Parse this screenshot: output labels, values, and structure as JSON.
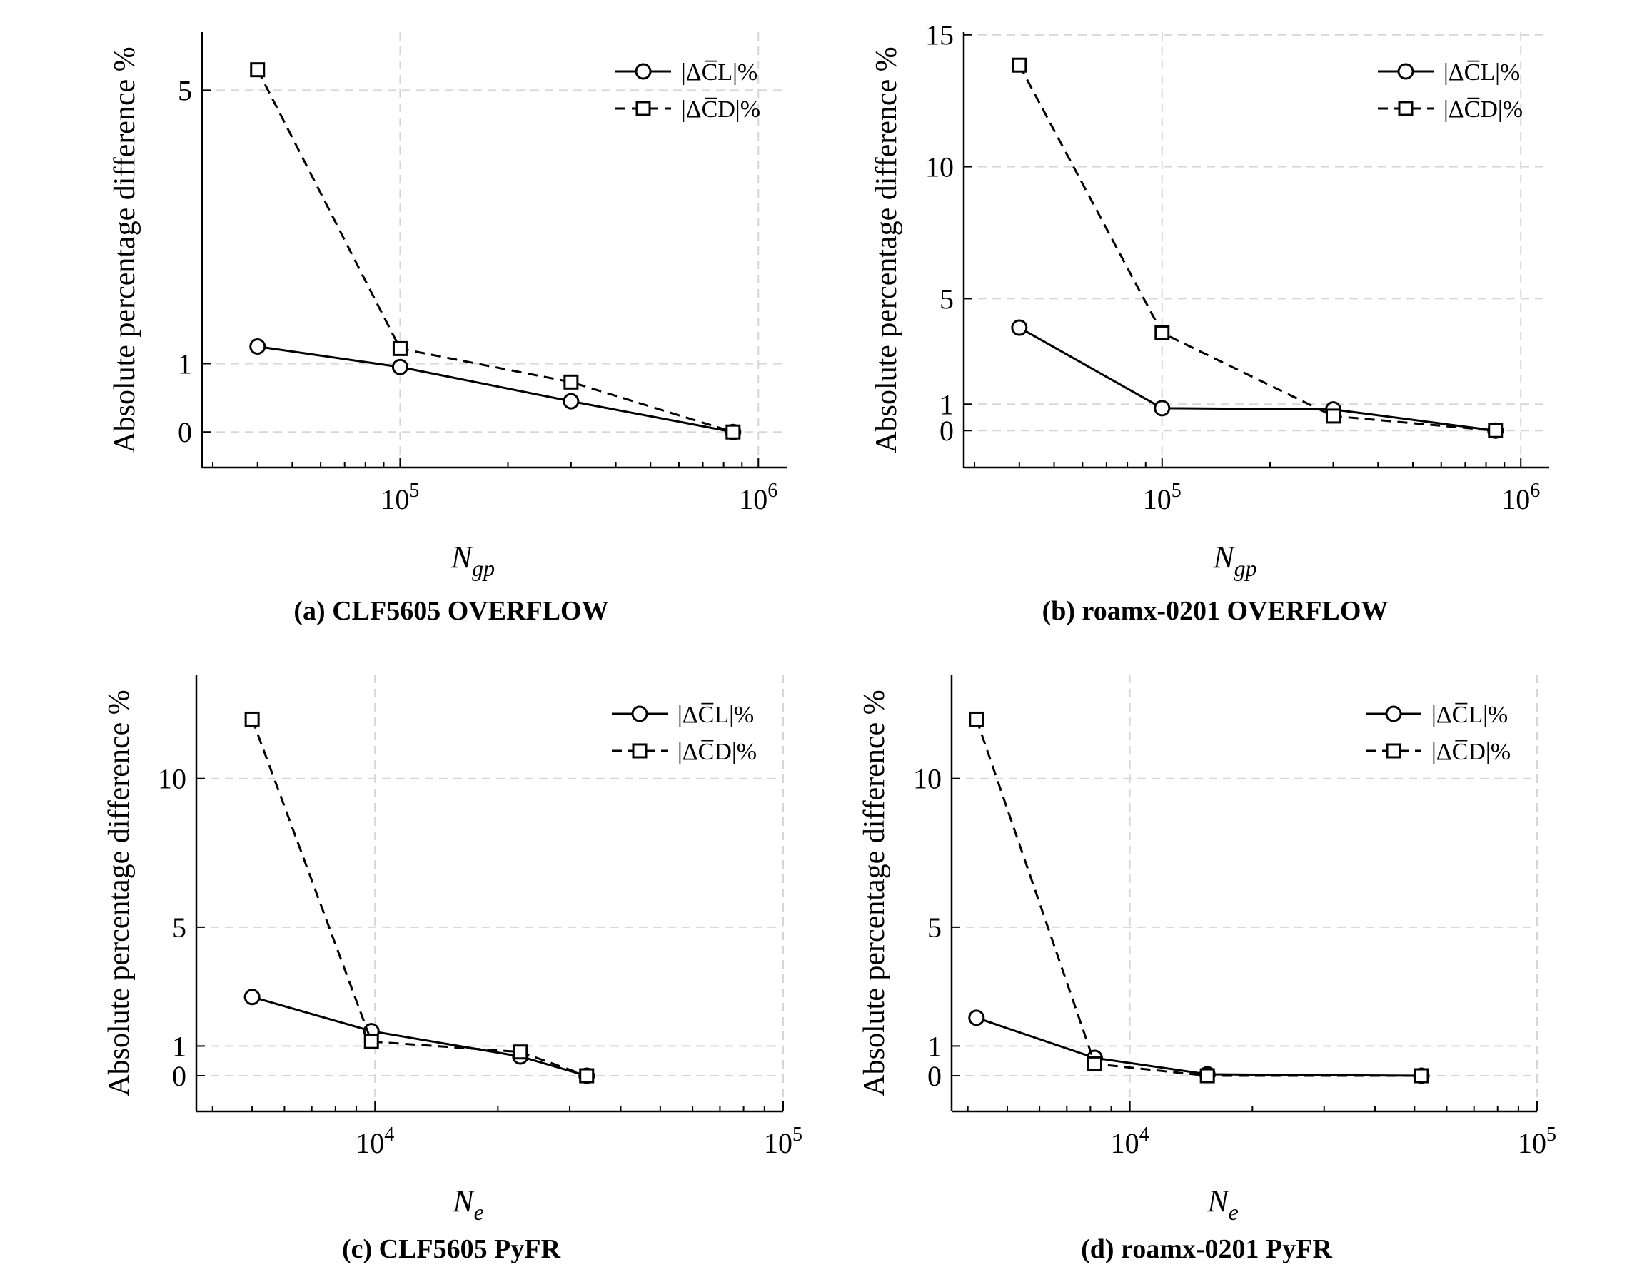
{
  "chart_data": [
    {
      "type": "line",
      "caption": "(a) CLF5605 OVERFLOW",
      "xlabel": "N",
      "xlabel_sub": "gp",
      "ylabel": "Absolute percentage difference %",
      "xscale": "log",
      "xlim": [
        28000,
        1200000
      ],
      "ylim": [
        -0.52,
        5.85
      ],
      "yticks": [
        0,
        1,
        5
      ],
      "xticks": [
        {
          "value": 100000,
          "base": "10",
          "exp": "5"
        },
        {
          "value": 1000000,
          "base": "10",
          "exp": "6"
        }
      ],
      "grid": true,
      "legend": "top-right",
      "series": [
        {
          "name": "CL",
          "label": "|ΔC̅L|%",
          "style": "solid",
          "marker": "circle",
          "x": [
            40000,
            100000,
            300000,
            850000
          ],
          "y": [
            1.25,
            0.95,
            0.45,
            0.0
          ]
        },
        {
          "name": "CD",
          "label": "|ΔC̅D|%",
          "style": "dashed",
          "marker": "square",
          "x": [
            40000,
            100000,
            300000,
            850000
          ],
          "y": [
            5.3,
            1.22,
            0.73,
            0.0
          ]
        }
      ]
    },
    {
      "type": "line",
      "caption": "(b) roamx-0201 OVERFLOW",
      "xlabel": "N",
      "xlabel_sub": "gp",
      "ylabel": "Absolute percentage difference %",
      "xscale": "log",
      "xlim": [
        28000,
        1200000
      ],
      "ylim": [
        -1.4,
        15.1
      ],
      "yticks": [
        0,
        1,
        5,
        10,
        15
      ],
      "xticks": [
        {
          "value": 100000,
          "base": "10",
          "exp": "5"
        },
        {
          "value": 1000000,
          "base": "10",
          "exp": "6"
        }
      ],
      "grid": true,
      "legend": "top-right",
      "series": [
        {
          "name": "CL",
          "label": "|ΔC̅L|%",
          "style": "solid",
          "marker": "circle",
          "x": [
            40000,
            100000,
            300000,
            850000
          ],
          "y": [
            3.9,
            0.85,
            0.8,
            0.0
          ]
        },
        {
          "name": "CD",
          "label": "|ΔC̅D|%",
          "style": "dashed",
          "marker": "square",
          "x": [
            40000,
            100000,
            300000,
            850000
          ],
          "y": [
            13.85,
            3.7,
            0.55,
            0.0
          ]
        }
      ]
    },
    {
      "type": "line",
      "caption": "(c) CLF5605 PyFR",
      "xlabel": "N",
      "xlabel_sub": "e",
      "ylabel": "Absolute percentage difference %",
      "xscale": "log",
      "xlim": [
        3650,
        100000
      ],
      "ylim": [
        -1.2,
        13.5
      ],
      "yticks": [
        0,
        1,
        5,
        10
      ],
      "xticks": [
        {
          "value": 10000,
          "base": "10",
          "exp": "4"
        },
        {
          "value": 100000,
          "base": "10",
          "exp": "5"
        }
      ],
      "grid": true,
      "legend": "top-right",
      "series": [
        {
          "name": "CL",
          "label": "|ΔC̅L|%",
          "style": "solid",
          "marker": "circle",
          "x": [
            5000,
            9800,
            22700,
            33000
          ],
          "y": [
            2.65,
            1.5,
            0.65,
            0.0
          ]
        },
        {
          "name": "CD",
          "label": "|ΔC̅D|%",
          "style": "dashed",
          "marker": "square",
          "x": [
            5000,
            9800,
            22700,
            33000
          ],
          "y": [
            12.0,
            1.15,
            0.8,
            0.0
          ]
        }
      ]
    },
    {
      "type": "line",
      "caption": "(d) roamx-0201 PyFR",
      "xlabel": "N",
      "xlabel_sub": "e",
      "ylabel": "Absolute percentage difference %",
      "xscale": "log",
      "xlim": [
        3650,
        100000
      ],
      "ylim": [
        -1.2,
        13.5
      ],
      "yticks": [
        0,
        1,
        5,
        10
      ],
      "xticks": [
        {
          "value": 10000,
          "base": "10",
          "exp": "4"
        },
        {
          "value": 100000,
          "base": "10",
          "exp": "5"
        }
      ],
      "grid": true,
      "legend": "top-right",
      "series": [
        {
          "name": "CL",
          "label": "|ΔC̅L|%",
          "style": "solid",
          "marker": "circle",
          "x": [
            4200,
            8200,
            15500,
            52000
          ],
          "y": [
            1.95,
            0.6,
            0.05,
            0.0
          ]
        },
        {
          "name": "CD",
          "label": "|ΔC̅D|%",
          "style": "dashed",
          "marker": "square",
          "x": [
            4200,
            8200,
            15500,
            52000
          ],
          "y": [
            12.0,
            0.4,
            0.0,
            0.0
          ]
        }
      ]
    }
  ]
}
